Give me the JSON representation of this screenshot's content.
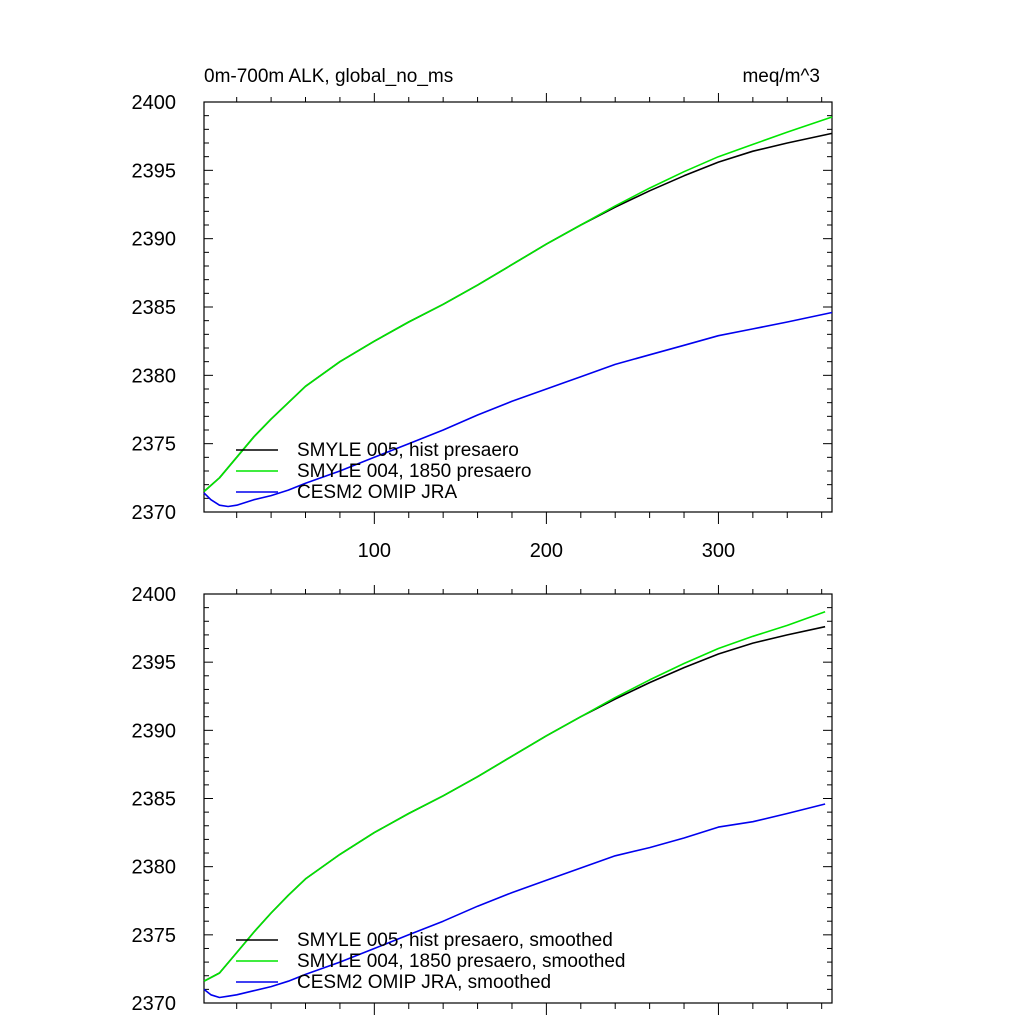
{
  "chart_data": [
    {
      "type": "line",
      "title_left": "0m-700m ALK, global_no_ms",
      "title_right": "meq/m^3",
      "xlim": [
        1,
        366
      ],
      "ylim": [
        2370,
        2400
      ],
      "y_ticks": [
        2370,
        2375,
        2380,
        2385,
        2390,
        2395,
        2400
      ],
      "x_ticks": [
        100,
        200,
        300
      ],
      "x_tick_labels_shown": true,
      "legend_position": "bottom-left",
      "series": [
        {
          "name": "SMYLE 005, hist presaero",
          "color": "#000000",
          "x": [
            1,
            10,
            20,
            30,
            40,
            50,
            60,
            80,
            100,
            120,
            140,
            160,
            180,
            200,
            220,
            240,
            260,
            280,
            300,
            320,
            340,
            366
          ],
          "y": [
            2371.5,
            2372.5,
            2374.0,
            2375.5,
            2376.8,
            2378.0,
            2379.2,
            2381.0,
            2382.5,
            2383.9,
            2385.2,
            2386.6,
            2388.1,
            2389.6,
            2391.0,
            2392.3,
            2393.5,
            2394.6,
            2395.6,
            2396.4,
            2397.0,
            2397.7
          ]
        },
        {
          "name": "SMYLE 004, 1850 presaero",
          "color": "#00e600",
          "x": [
            1,
            10,
            20,
            30,
            40,
            50,
            60,
            80,
            100,
            120,
            140,
            160,
            180,
            200,
            220,
            240,
            260,
            280,
            300,
            320,
            340,
            366
          ],
          "y": [
            2371.5,
            2372.5,
            2374.0,
            2375.5,
            2376.8,
            2378.0,
            2379.2,
            2381.0,
            2382.5,
            2383.9,
            2385.2,
            2386.6,
            2388.1,
            2389.6,
            2391.0,
            2392.4,
            2393.7,
            2394.9,
            2396.0,
            2396.9,
            2397.8,
            2398.9
          ]
        },
        {
          "name": "CESM2 OMIP JRA",
          "color": "#0000ee",
          "x": [
            1,
            5,
            10,
            15,
            20,
            30,
            40,
            50,
            60,
            80,
            100,
            120,
            140,
            160,
            180,
            200,
            220,
            240,
            260,
            280,
            300,
            320,
            340,
            366
          ],
          "y": [
            2371.4,
            2370.9,
            2370.5,
            2370.4,
            2370.5,
            2370.9,
            2371.2,
            2371.6,
            2372.1,
            2373.0,
            2374.0,
            2375.0,
            2376.0,
            2377.1,
            2378.1,
            2379.0,
            2379.9,
            2380.8,
            2381.5,
            2382.2,
            2382.9,
            2383.4,
            2383.9,
            2384.6
          ]
        }
      ]
    },
    {
      "type": "line",
      "xlim": [
        1,
        366
      ],
      "ylim": [
        2370,
        2400
      ],
      "y_ticks": [
        2370,
        2375,
        2380,
        2385,
        2390,
        2395,
        2400
      ],
      "x_ticks": [
        100,
        200,
        300
      ],
      "x_tick_labels_shown": false,
      "legend_position": "bottom-left",
      "series": [
        {
          "name": "SMYLE 005, hist presaero, smoothed",
          "color": "#000000",
          "x": [
            1,
            10,
            20,
            30,
            40,
            50,
            60,
            80,
            100,
            120,
            140,
            160,
            180,
            200,
            220,
            240,
            260,
            280,
            300,
            320,
            340,
            362
          ],
          "y": [
            2371.6,
            2372.2,
            2373.7,
            2375.2,
            2376.6,
            2377.9,
            2379.1,
            2380.9,
            2382.5,
            2383.9,
            2385.2,
            2386.6,
            2388.1,
            2389.6,
            2391.0,
            2392.3,
            2393.5,
            2394.6,
            2395.6,
            2396.4,
            2397.0,
            2397.6
          ]
        },
        {
          "name": "SMYLE 004, 1850 presaero, smoothed",
          "color": "#00e600",
          "x": [
            1,
            10,
            20,
            30,
            40,
            50,
            60,
            80,
            100,
            120,
            140,
            160,
            180,
            200,
            220,
            240,
            260,
            280,
            300,
            320,
            340,
            362
          ],
          "y": [
            2371.6,
            2372.2,
            2373.7,
            2375.2,
            2376.6,
            2377.9,
            2379.1,
            2380.9,
            2382.5,
            2383.9,
            2385.2,
            2386.6,
            2388.1,
            2389.6,
            2391.0,
            2392.4,
            2393.7,
            2394.9,
            2396.0,
            2396.9,
            2397.7,
            2398.7
          ]
        },
        {
          "name": "CESM2 OMIP JRA, smoothed",
          "color": "#0000ee",
          "x": [
            1,
            5,
            10,
            15,
            20,
            30,
            40,
            50,
            60,
            80,
            100,
            120,
            140,
            160,
            180,
            200,
            220,
            240,
            260,
            280,
            300,
            320,
            340,
            362
          ],
          "y": [
            2371.0,
            2370.6,
            2370.4,
            2370.5,
            2370.6,
            2370.9,
            2371.2,
            2371.6,
            2372.1,
            2373.0,
            2374.0,
            2375.0,
            2376.0,
            2377.1,
            2378.1,
            2379.0,
            2379.9,
            2380.8,
            2381.4,
            2382.1,
            2382.9,
            2383.3,
            2383.9,
            2384.6
          ]
        }
      ]
    }
  ]
}
